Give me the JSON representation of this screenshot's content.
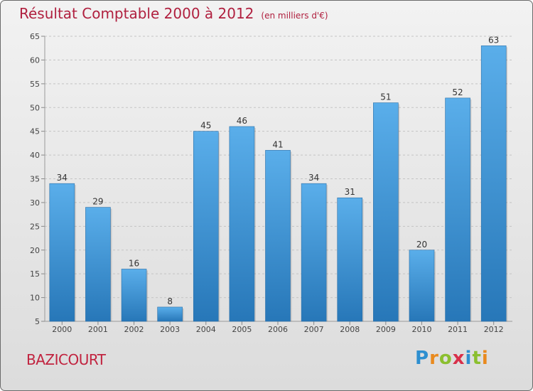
{
  "chart_data": {
    "type": "bar",
    "title": "Résultat Comptable 2000 à 2012",
    "subtitle": "(en milliers d'€)",
    "categories": [
      "2000",
      "2001",
      "2002",
      "2003",
      "2004",
      "2005",
      "2006",
      "2007",
      "2008",
      "2009",
      "2010",
      "2011",
      "2012"
    ],
    "values": [
      34,
      29,
      16,
      8,
      45,
      46,
      41,
      34,
      31,
      51,
      20,
      52,
      63
    ],
    "yticks": [
      5,
      10,
      15,
      20,
      25,
      30,
      35,
      40,
      45,
      50,
      55,
      60,
      65
    ],
    "ylim": [
      5,
      65
    ],
    "xlabel": "",
    "ylabel": "",
    "grid": true,
    "bar_color": "#3f95d8"
  },
  "commune": "BAZICOURT",
  "logo": {
    "letters": [
      "P",
      "r",
      "o",
      "x",
      "i",
      "t",
      "i"
    ],
    "colors": [
      "#2d8fd0",
      "#e98a1e",
      "#8bbf2f",
      "#d8304a",
      "#2d8fd0",
      "#8bbf2f",
      "#e98a1e"
    ]
  }
}
